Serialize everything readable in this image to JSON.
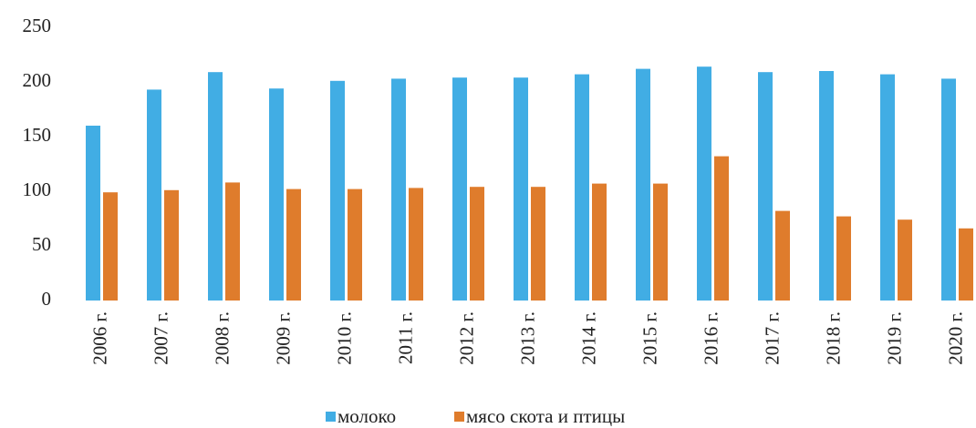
{
  "chart_data": {
    "type": "bar",
    "categories": [
      "2006 г.",
      "2007 г.",
      "2008 г.",
      "2009 г.",
      "2010 г.",
      "2011 г.",
      "2012 г.",
      "2013 г.",
      "2014 г.",
      "2015 г.",
      "2016 г.",
      "2017 г.",
      "2018 г.",
      "2019 г.",
      "2020 г."
    ],
    "series": [
      {
        "name": "молоко",
        "color": "#41ade4",
        "values": [
          160,
          193,
          209,
          194,
          201,
          203,
          204,
          204,
          207,
          212,
          214,
          209,
          210,
          207,
          203
        ]
      },
      {
        "name": "мясо скота и птицы",
        "color": "#df7c2c",
        "values": [
          99,
          101,
          108,
          102,
          102,
          103,
          104,
          104,
          107,
          107,
          132,
          82,
          77,
          74,
          66
        ]
      }
    ],
    "ylim": [
      0,
      250
    ],
    "yticks": [
      0,
      50,
      100,
      150,
      200,
      250
    ],
    "grid": false,
    "legend": "bottom"
  }
}
